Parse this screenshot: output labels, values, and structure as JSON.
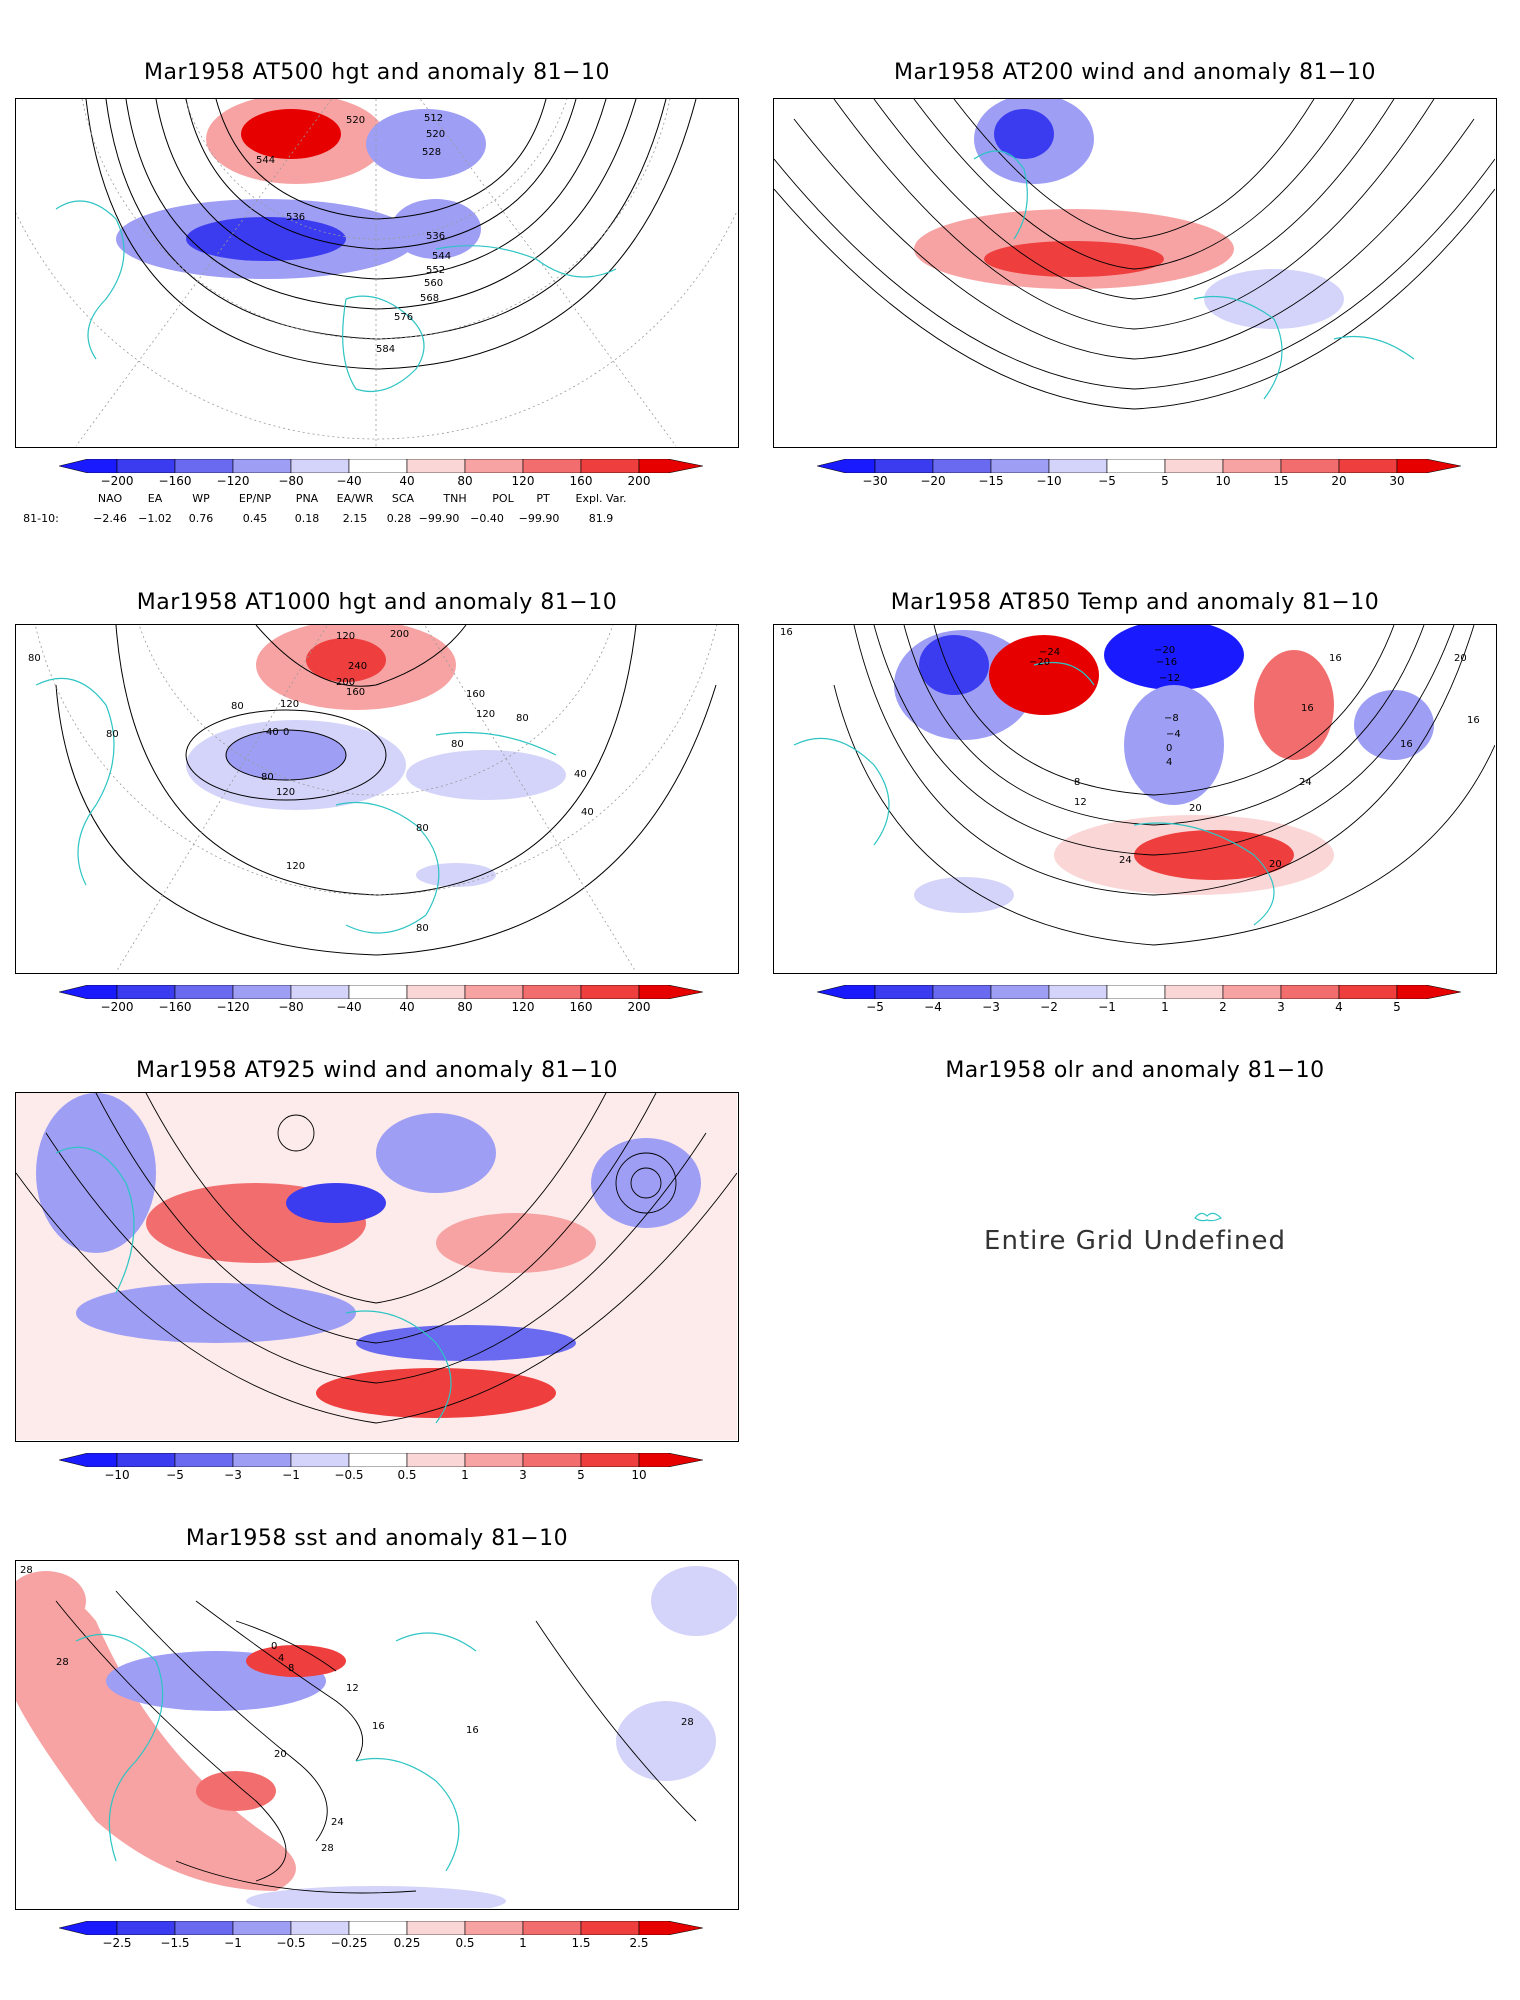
{
  "panels": [
    {
      "id": "p1",
      "title": "Mar1958 AT500 hgt and anomaly 81−10",
      "contour_labels": [
        "520",
        "512",
        "520",
        "528",
        "544",
        "536",
        "536",
        "544",
        "552",
        "560",
        "568",
        "576",
        "584"
      ],
      "colorbar": [
        "−200",
        "−160",
        "−120",
        "−80",
        "−40",
        "40",
        "80",
        "120",
        "160",
        "200"
      ]
    },
    {
      "id": "p2",
      "title": "Mar1958 AT200 wind and anomaly 81−10",
      "colorbar": [
        "−30",
        "−20",
        "−15",
        "−10",
        "−5",
        "5",
        "10",
        "15",
        "20",
        "30"
      ]
    },
    {
      "id": "p3",
      "title": "Mar1958 AT1000 hgt and anomaly 81−10",
      "contour_labels": [
        "80",
        "120",
        "200",
        "240",
        "200",
        "160",
        "120",
        "80",
        "40",
        "0",
        "80",
        "120",
        "160",
        "120",
        "80",
        "80",
        "40",
        "80",
        "40",
        "80",
        "120",
        "80"
      ],
      "colorbar": [
        "−200",
        "−160",
        "−120",
        "−80",
        "−40",
        "40",
        "80",
        "120",
        "160",
        "200"
      ]
    },
    {
      "id": "p4",
      "title": "Mar1958 AT850 Temp and anomaly 81−10",
      "contour_labels": [
        "16",
        "−24",
        "−20",
        "−20",
        "−16",
        "−12",
        "−8",
        "−4",
        "0",
        "4",
        "8",
        "12",
        "16",
        "16",
        "20",
        "16",
        "24",
        "20",
        "24",
        "20",
        "16"
      ],
      "colorbar": [
        "−5",
        "−4",
        "−3",
        "−2",
        "−1",
        "1",
        "2",
        "3",
        "4",
        "5"
      ]
    },
    {
      "id": "p5",
      "title": "Mar1958 AT925 wind and anomaly 81−10",
      "colorbar": [
        "−10",
        "−5",
        "−3",
        "−1",
        "−0.5",
        "0.5",
        "1",
        "3",
        "5",
        "10"
      ]
    },
    {
      "id": "p6",
      "title": "Mar1958 olr and anomaly 81−10",
      "message": "Entire Grid Undefined"
    },
    {
      "id": "p7",
      "title": "Mar1958 sst and anomaly 81−10",
      "contour_labels": [
        "28",
        "28",
        "0",
        "4",
        "8",
        "12",
        "16",
        "20",
        "24",
        "28",
        "28",
        "16"
      ],
      "colorbar": [
        "−2.5",
        "−1.5",
        "−1",
        "−0.5",
        "−0.25",
        "0.25",
        "0.5",
        "1",
        "1.5",
        "2.5"
      ]
    }
  ],
  "indices": {
    "names": [
      "NAO",
      "EA",
      "WP",
      "EP/NP",
      "PNA",
      "EA/WR",
      "SCA",
      "TNH",
      "POL",
      "PT",
      "Expl. Var."
    ],
    "row_label": "81-10:",
    "values": [
      "−2.46",
      "−1.02",
      "0.76",
      "0.45",
      "0.18",
      "2.15",
      "0.28",
      "−99.90",
      "−0.40",
      "−99.90",
      "81.9"
    ]
  },
  "colors": {
    "coast": "#2ec4c4",
    "grid": "#9a9a9a",
    "ramp": [
      "#1a1aff",
      "#3b3bf0",
      "#6a6af0",
      "#9e9ef5",
      "#d4d4fa",
      "#ffffff",
      "#fbd6d6",
      "#f7a3a3",
      "#f26e6e",
      "#ee3e3e",
      "#e60000"
    ]
  }
}
